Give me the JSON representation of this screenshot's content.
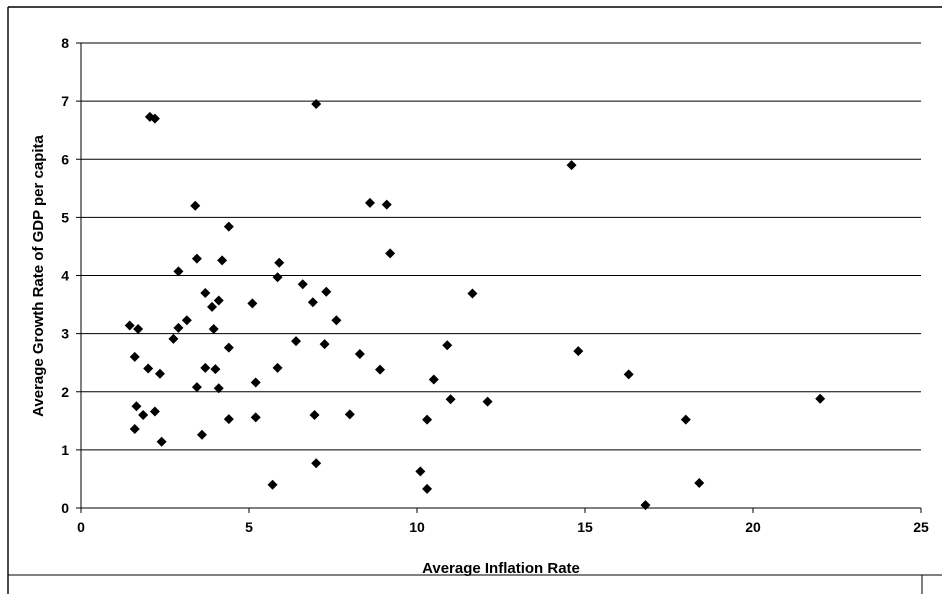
{
  "chart_data": {
    "type": "scatter",
    "title": "",
    "xlabel": "Average Inflation Rate",
    "ylabel": "Average Growth Rate of GDP per capita",
    "xlim": [
      0,
      25
    ],
    "ylim": [
      0,
      8
    ],
    "x_ticks": [
      "0",
      "5",
      "10",
      "15",
      "20",
      "25"
    ],
    "y_ticks": [
      "0",
      "1",
      "2",
      "3",
      "4",
      "5",
      "6",
      "7",
      "8"
    ],
    "grid": "horizontal",
    "legend": "none",
    "marker": "diamond",
    "marker_color": "#000000",
    "points": [
      [
        2.05,
        6.73
      ],
      [
        2.2,
        6.7
      ],
      [
        7.0,
        6.95
      ],
      [
        14.6,
        5.9
      ],
      [
        3.4,
        5.2
      ],
      [
        8.6,
        5.25
      ],
      [
        9.1,
        5.22
      ],
      [
        4.4,
        4.84
      ],
      [
        9.2,
        4.38
      ],
      [
        3.45,
        4.29
      ],
      [
        4.2,
        4.26
      ],
      [
        5.9,
        4.22
      ],
      [
        2.9,
        4.07
      ],
      [
        5.85,
        3.97
      ],
      [
        6.6,
        3.85
      ],
      [
        3.7,
        3.7
      ],
      [
        4.1,
        3.57
      ],
      [
        7.3,
        3.72
      ],
      [
        11.65,
        3.69
      ],
      [
        3.9,
        3.46
      ],
      [
        5.1,
        3.52
      ],
      [
        6.9,
        3.54
      ],
      [
        7.6,
        3.23
      ],
      [
        1.45,
        3.14
      ],
      [
        1.7,
        3.08
      ],
      [
        2.9,
        3.1
      ],
      [
        3.15,
        3.23
      ],
      [
        3.95,
        3.08
      ],
      [
        2.75,
        2.91
      ],
      [
        6.4,
        2.87
      ],
      [
        7.25,
        2.82
      ],
      [
        4.4,
        2.76
      ],
      [
        10.9,
        2.8
      ],
      [
        14.8,
        2.7
      ],
      [
        1.6,
        2.6
      ],
      [
        8.3,
        2.65
      ],
      [
        2.0,
        2.4
      ],
      [
        3.7,
        2.41
      ],
      [
        4.0,
        2.39
      ],
      [
        5.85,
        2.41
      ],
      [
        8.9,
        2.38
      ],
      [
        2.35,
        2.31
      ],
      [
        16.3,
        2.3
      ],
      [
        10.5,
        2.21
      ],
      [
        5.2,
        2.16
      ],
      [
        3.45,
        2.08
      ],
      [
        4.1,
        2.06
      ],
      [
        22.0,
        1.88
      ],
      [
        11.0,
        1.87
      ],
      [
        12.1,
        1.83
      ],
      [
        1.65,
        1.75
      ],
      [
        1.85,
        1.6
      ],
      [
        2.2,
        1.66
      ],
      [
        6.95,
        1.6
      ],
      [
        8.0,
        1.61
      ],
      [
        4.4,
        1.53
      ],
      [
        5.2,
        1.56
      ],
      [
        10.3,
        1.52
      ],
      [
        18.0,
        1.52
      ],
      [
        1.6,
        1.36
      ],
      [
        3.6,
        1.26
      ],
      [
        2.4,
        1.14
      ],
      [
        7.0,
        0.77
      ],
      [
        10.1,
        0.63
      ],
      [
        5.7,
        0.4
      ],
      [
        10.3,
        0.33
      ],
      [
        18.4,
        0.43
      ],
      [
        16.8,
        0.05
      ]
    ]
  }
}
